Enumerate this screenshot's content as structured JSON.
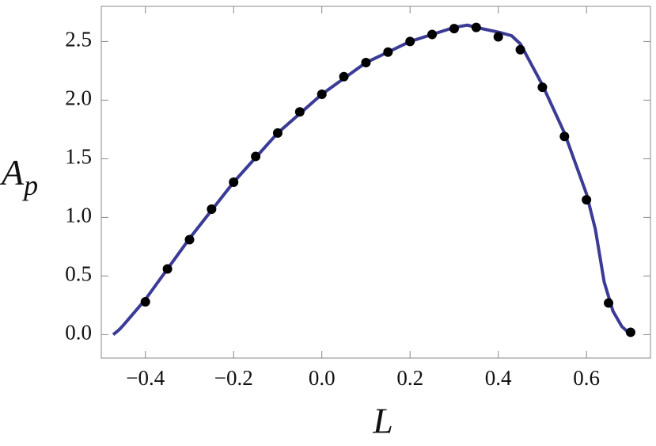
{
  "chart_data": {
    "type": "line",
    "xlabel": "L",
    "ylabel": "A",
    "ylabel_sub": "p",
    "xlim": [
      -0.5,
      0.745
    ],
    "ylim": [
      -0.2,
      2.8
    ],
    "xticks": [
      {
        "value": -0.4,
        "label": "−0.4"
      },
      {
        "value": -0.2,
        "label": "−0.2"
      },
      {
        "value": 0,
        "label": "0.0"
      },
      0.2,
      0.4,
      0.6
    ],
    "yticks": [
      {
        "value": 0,
        "label": "0.0"
      },
      0.5,
      {
        "value": 1,
        "label": "1.0"
      },
      1.5,
      {
        "value": 2,
        "label": "2.0"
      },
      2.5
    ],
    "series": [
      {
        "style": "line",
        "color": "#3b3b96",
        "x": [
          -0.473,
          -0.46,
          -0.45,
          -0.4,
          -0.3,
          -0.2,
          -0.1,
          0,
          0.1,
          0.2,
          0.3,
          0.33,
          0.35,
          0.4,
          0.43,
          0.45,
          0.5,
          0.55,
          0.6,
          0.62,
          0.64,
          0.66,
          0.68,
          0.7
        ],
        "values": [
          0.0,
          0.04,
          0.08,
          0.3,
          0.82,
          1.3,
          1.72,
          2.05,
          2.32,
          2.5,
          2.62,
          2.64,
          2.62,
          2.58,
          2.55,
          2.48,
          2.13,
          1.72,
          1.2,
          0.9,
          0.45,
          0.2,
          0.07,
          0.0
        ]
      },
      {
        "style": "points",
        "color": "#000000",
        "x": [
          -0.4,
          -0.35,
          -0.3,
          -0.25,
          -0.2,
          -0.15,
          -0.1,
          -0.05,
          0,
          0.05,
          0.1,
          0.15,
          0.2,
          0.25,
          0.3,
          0.35,
          0.4,
          0.45,
          0.5,
          0.55,
          0.6,
          0.65,
          0.7
        ],
        "values": [
          0.28,
          0.56,
          0.81,
          1.07,
          1.3,
          1.52,
          1.72,
          1.9,
          2.05,
          2.2,
          2.32,
          2.41,
          2.5,
          2.56,
          2.61,
          2.62,
          2.54,
          2.43,
          2.11,
          1.69,
          1.15,
          0.27,
          0.02
        ]
      }
    ]
  }
}
